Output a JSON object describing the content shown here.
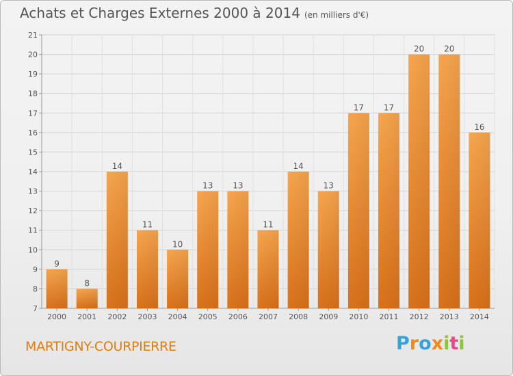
{
  "title": "Achats et Charges Externes 2000 à 2014",
  "subtitle": "(en milliers d'€)",
  "commune": "MARTIGNY-COURPIERRE",
  "logo": "Proxiti",
  "colors": {
    "bar_light": "#f7a54e",
    "bar_dark": "#d9711a",
    "text": "#555555",
    "accent": "#e07d12"
  },
  "chart_data": {
    "type": "bar",
    "title": "Achats et Charges Externes 2000 à 2014",
    "subtitle": "(en milliers d'€)",
    "categories": [
      "2000",
      "2001",
      "2002",
      "2003",
      "2004",
      "2005",
      "2006",
      "2007",
      "2008",
      "2009",
      "2010",
      "2011",
      "2012",
      "2013",
      "2014"
    ],
    "values": [
      9,
      8,
      14,
      11,
      10,
      13,
      13,
      11,
      14,
      13,
      17,
      17,
      20,
      20,
      16
    ],
    "data_labels": [
      "9",
      "8",
      "14",
      "11",
      "10",
      "13",
      "13",
      "11",
      "14",
      "13",
      "17",
      "17",
      "20",
      "20",
      "16"
    ],
    "yticks": [
      7,
      8,
      9,
      10,
      11,
      12,
      13,
      14,
      15,
      16,
      17,
      18,
      19,
      20,
      21
    ],
    "ylim": [
      7,
      21
    ],
    "grid": true,
    "xlabel": "",
    "ylabel": ""
  }
}
